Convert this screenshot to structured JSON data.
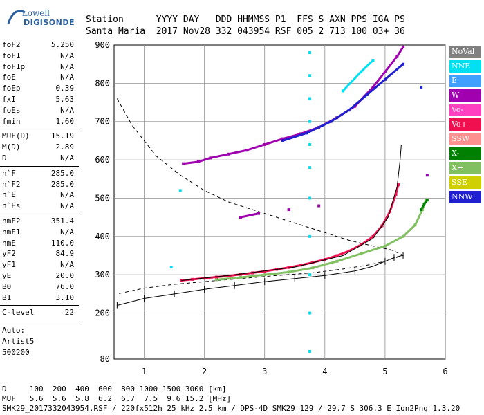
{
  "logo": {
    "top": "Lowell",
    "main": "DIGISONDE"
  },
  "header": {
    "labels_row": "Station      YYYY DAY   DDD HHMMSS P1  FFS S AXN PPS IGA PS",
    "values_row": "Santa Maria  2017 Nov28 332 043954 RSF 005 2 713 100 03+ 36"
  },
  "params": [
    {
      "label": "foF2",
      "value": "5.250"
    },
    {
      "label": "foF1",
      "value": "N/A"
    },
    {
      "label": "foF1p",
      "value": "N/A"
    },
    {
      "label": "foE",
      "value": "N/A"
    },
    {
      "label": "foEp",
      "value": "0.39"
    },
    {
      "label": "fxI",
      "value": "5.63"
    },
    {
      "label": "foEs",
      "value": "N/A"
    },
    {
      "label": "fmin",
      "value": "1.60"
    },
    {
      "label": "MUF(D)",
      "value": "15.19"
    },
    {
      "label": "M(D)",
      "value": "2.89"
    },
    {
      "label": "D",
      "value": "N/A"
    },
    {
      "label": "h`F",
      "value": "285.0"
    },
    {
      "label": "h`F2",
      "value": "285.0"
    },
    {
      "label": "h`E",
      "value": "N/A"
    },
    {
      "label": "h`Es",
      "value": "N/A"
    },
    {
      "label": "hmF2",
      "value": "351.4"
    },
    {
      "label": "hmF1",
      "value": "N/A"
    },
    {
      "label": "hmE",
      "value": "110.0"
    },
    {
      "label": "yF2",
      "value": "84.9"
    },
    {
      "label": "yF1",
      "value": "N/A"
    },
    {
      "label": "yE",
      "value": "20.0"
    },
    {
      "label": "B0",
      "value": "76.0"
    },
    {
      "label": "B1",
      "value": "3.10"
    },
    {
      "label": "C-level",
      "value": "22"
    }
  ],
  "autoscaling": {
    "line1": "Auto:",
    "line2": "Artist5",
    "line3": "500200"
  },
  "legend": [
    {
      "label": "NoVal",
      "color": "#808080"
    },
    {
      "label": "NNE",
      "color": "#00e0f0"
    },
    {
      "label": "E",
      "color": "#40a0ff"
    },
    {
      "label": "W",
      "color": "#a000b0"
    },
    {
      "label": "Vo-",
      "color": "#ff40c0"
    },
    {
      "label": "Vo+",
      "color": "#f01050"
    },
    {
      "label": "SSW",
      "color": "#ff9090"
    },
    {
      "label": "X-",
      "color": "#008000"
    },
    {
      "label": "X+",
      "color": "#80c060"
    },
    {
      "label": "SSE",
      "color": "#d0d000"
    },
    {
      "label": "NNW",
      "color": "#2020d0"
    }
  ],
  "footer": {
    "d_row": "D     100  200  400  600  800 1000 1500 3000 [km]",
    "muf_row": "MUF   5.6  5.6  5.8  6.2  6.7  7.5  9.6 15.2 [MHz]",
    "file_row": "SMK29_2017332043954.RSF / 220fx512h 25 kHz 2.5 km / DPS-4D SMK29 129 / 29.7 S 306.3 E Ion2Png 1.3.20"
  },
  "chart_data": {
    "type": "scatter",
    "xlabel": "",
    "ylabel": "",
    "xlim": [
      0.5,
      6.0
    ],
    "ylim": [
      80,
      900
    ],
    "xticks": [
      1,
      2,
      3,
      4,
      5,
      6
    ],
    "yticks": [
      80,
      200,
      300,
      400,
      500,
      600,
      700,
      800,
      900
    ],
    "grid": true,
    "legend_position": "right",
    "series": [
      {
        "name": "Vo+",
        "color": "#f01050",
        "points": [
          [
            1.62,
            285
          ],
          [
            1.8,
            288
          ],
          [
            2.0,
            291
          ],
          [
            2.2,
            294
          ],
          [
            2.4,
            297
          ],
          [
            2.6,
            301
          ],
          [
            2.8,
            305
          ],
          [
            3.0,
            309
          ],
          [
            3.2,
            314
          ],
          [
            3.4,
            319
          ],
          [
            3.6,
            325
          ],
          [
            3.8,
            332
          ],
          [
            4.0,
            340
          ],
          [
            4.2,
            350
          ],
          [
            4.4,
            362
          ],
          [
            4.6,
            378
          ],
          [
            4.8,
            400
          ],
          [
            4.95,
            428
          ],
          [
            5.08,
            465
          ],
          [
            5.18,
            510
          ],
          [
            5.22,
            535
          ]
        ]
      },
      {
        "name": "X+",
        "color": "#80c060",
        "points": [
          [
            2.2,
            287
          ],
          [
            2.6,
            293
          ],
          [
            3.0,
            300
          ],
          [
            3.4,
            307
          ],
          [
            3.8,
            318
          ],
          [
            4.2,
            335
          ],
          [
            4.6,
            355
          ],
          [
            5.0,
            375
          ],
          [
            5.3,
            400
          ],
          [
            5.5,
            430
          ],
          [
            5.62,
            470
          ],
          [
            5.68,
            495
          ]
        ]
      },
      {
        "name": "W",
        "color": "#a000b0",
        "points": [
          [
            1.65,
            590
          ],
          [
            1.9,
            595
          ],
          [
            2.1,
            605
          ],
          [
            2.4,
            615
          ],
          [
            2.7,
            625
          ],
          [
            3.0,
            640
          ],
          [
            3.3,
            655
          ],
          [
            3.6,
            668
          ],
          [
            3.9,
            685
          ],
          [
            4.2,
            710
          ],
          [
            4.5,
            740
          ],
          [
            4.8,
            790
          ],
          [
            5.0,
            830
          ],
          [
            5.2,
            870
          ],
          [
            5.3,
            895
          ],
          [
            2.6,
            450
          ],
          [
            2.9,
            460
          ],
          [
            3.4,
            470
          ],
          [
            3.9,
            480
          ],
          [
            5.7,
            560
          ]
        ]
      },
      {
        "name": "NNW",
        "color": "#2020d0",
        "points": [
          [
            3.3,
            650
          ],
          [
            3.7,
            670
          ],
          [
            4.1,
            700
          ],
          [
            4.4,
            730
          ],
          [
            4.7,
            770
          ],
          [
            5.0,
            810
          ],
          [
            5.3,
            850
          ],
          [
            5.6,
            790
          ]
        ]
      },
      {
        "name": "NNE",
        "color": "#00e0f0",
        "points": [
          [
            3.75,
            880
          ],
          [
            3.75,
            820
          ],
          [
            3.75,
            760
          ],
          [
            3.75,
            700
          ],
          [
            3.75,
            640
          ],
          [
            3.75,
            580
          ],
          [
            3.75,
            500
          ],
          [
            3.75,
            400
          ],
          [
            3.75,
            300
          ],
          [
            3.75,
            200
          ],
          [
            3.75,
            100
          ],
          [
            4.3,
            780
          ],
          [
            4.6,
            830
          ],
          [
            4.8,
            860
          ],
          [
            1.45,
            320
          ],
          [
            1.6,
            520
          ]
        ]
      },
      {
        "name": "X-",
        "color": "#008000",
        "points": [
          [
            5.6,
            470
          ],
          [
            5.65,
            485
          ],
          [
            5.7,
            495
          ]
        ]
      }
    ],
    "profile_curve": {
      "name": "profile",
      "points": [
        [
          0.55,
          220
        ],
        [
          1.0,
          238
        ],
        [
          1.5,
          250
        ],
        [
          2.0,
          262
        ],
        [
          2.5,
          272
        ],
        [
          3.0,
          282
        ],
        [
          3.5,
          290
        ],
        [
          4.0,
          298
        ],
        [
          4.5,
          310
        ],
        [
          4.8,
          322
        ],
        [
          5.0,
          335
        ],
        [
          5.15,
          345
        ],
        [
          5.3,
          351
        ]
      ]
    },
    "dashed_curve": {
      "name": "dashed",
      "points": [
        [
          0.55,
          760
        ],
        [
          0.8,
          690
        ],
        [
          1.2,
          610
        ],
        [
          1.6,
          560
        ],
        [
          2.0,
          520
        ],
        [
          2.4,
          490
        ],
        [
          2.8,
          470
        ],
        [
          3.2,
          450
        ],
        [
          3.6,
          430
        ],
        [
          4.0,
          410
        ],
        [
          4.4,
          390
        ],
        [
          4.8,
          375
        ],
        [
          5.1,
          365
        ],
        [
          5.3,
          351
        ],
        [
          5.0,
          335
        ],
        [
          4.7,
          325
        ],
        [
          4.3,
          315
        ],
        [
          3.8,
          305
        ],
        [
          3.2,
          298
        ],
        [
          2.6,
          290
        ],
        [
          2.0,
          282
        ],
        [
          1.5,
          275
        ],
        [
          1.0,
          265
        ],
        [
          0.55,
          250
        ]
      ]
    },
    "fit_curve": {
      "name": "fit",
      "points": [
        [
          1.62,
          285
        ],
        [
          2.5,
          300
        ],
        [
          3.5,
          320
        ],
        [
          4.3,
          350
        ],
        [
          4.8,
          395
        ],
        [
          5.05,
          450
        ],
        [
          5.2,
          530
        ],
        [
          5.25,
          600
        ],
        [
          5.27,
          640
        ]
      ]
    }
  }
}
